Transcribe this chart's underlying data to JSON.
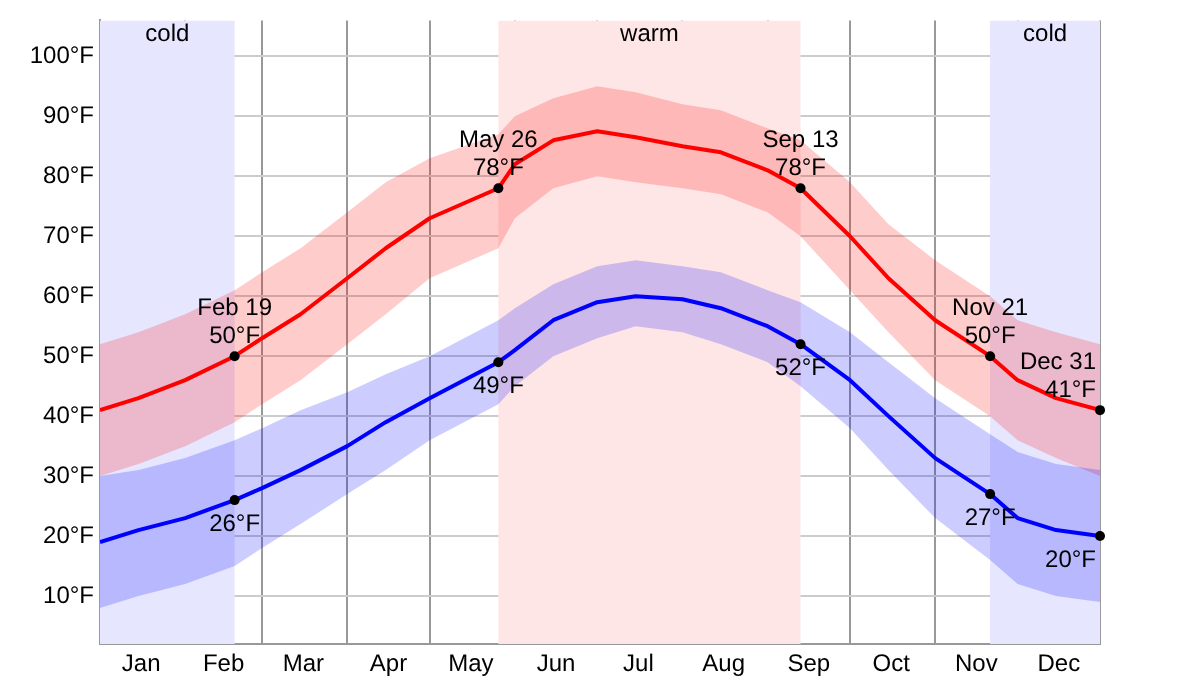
{
  "chart_data": {
    "type": "line",
    "x": [
      "--01-01",
      "--01-15",
      "--02-01",
      "--02-19",
      "--03-01",
      "--03-15",
      "--04-01",
      "--04-15",
      "--05-01",
      "--05-26",
      "--06-01",
      "--06-15",
      "--07-01",
      "--07-15",
      "--08-01",
      "--08-15",
      "--09-01",
      "--09-13",
      "--10-01",
      "--10-15",
      "--11-01",
      "--11-21",
      "--12-01",
      "--12-15",
      "--12-31"
    ],
    "series": [
      {
        "color": "#ff0000",
        "values": [
          41,
          43,
          46,
          50,
          53,
          57,
          63,
          68,
          73,
          78,
          82,
          86,
          87.5,
          86.5,
          85,
          84,
          81,
          78,
          70,
          63,
          56,
          50,
          46,
          43,
          41
        ],
        "lower": [
          30,
          32,
          35,
          39,
          42,
          46,
          52,
          57,
          63,
          68,
          73,
          78,
          80,
          79,
          78,
          77,
          74,
          70,
          61,
          54,
          46,
          40,
          36,
          33,
          30
        ],
        "upper": [
          52,
          54,
          57,
          61,
          64,
          68,
          74,
          79,
          83,
          87,
          90,
          93,
          95,
          94,
          92,
          91,
          88,
          86,
          79,
          72,
          66,
          60,
          56,
          54,
          52
        ]
      },
      {
        "color": "#0000ff",
        "values": [
          19,
          21,
          23,
          26,
          28,
          31,
          35,
          39,
          43,
          49,
          51,
          56,
          59,
          60,
          59.5,
          58,
          55,
          52,
          46,
          40,
          33,
          27,
          23,
          21,
          20
        ],
        "lower": [
          8,
          10,
          12,
          15,
          18,
          22,
          27,
          31,
          36,
          42,
          45,
          50,
          53,
          55,
          54,
          52,
          49,
          45,
          38,
          31,
          23,
          16,
          12,
          10,
          9
        ],
        "upper": [
          30,
          31,
          33,
          36,
          38,
          41,
          44,
          47,
          50,
          56,
          58,
          62,
          65,
          66,
          65,
          64,
          61,
          59,
          54,
          49,
          43,
          37,
          34,
          32,
          31
        ]
      }
    ],
    "xlim": [
      "--01-01",
      "--12-31"
    ],
    "xticks": [
      {
        "value": "--01-01",
        "label": null
      },
      {
        "value": "--01-16",
        "label": "Jan"
      },
      {
        "value": "--02-01",
        "label": null
      },
      {
        "value": "--02-15",
        "label": "Feb"
      },
      {
        "value": "--03-01",
        "label": null
      },
      {
        "value": "--03-16",
        "label": "Mar"
      },
      {
        "value": "--04-01",
        "label": null
      },
      {
        "value": "--04-16",
        "label": "Apr"
      },
      {
        "value": "--05-01",
        "label": null
      },
      {
        "value": "--05-16",
        "label": "May"
      },
      {
        "value": "--06-01",
        "label": null
      },
      {
        "value": "--06-16",
        "label": "Jun"
      },
      {
        "value": "--07-01",
        "label": null
      },
      {
        "value": "--07-16",
        "label": "Jul"
      },
      {
        "value": "--08-01",
        "label": null
      },
      {
        "value": "--08-16",
        "label": "Aug"
      },
      {
        "value": "--09-01",
        "label": null
      },
      {
        "value": "--09-16",
        "label": "Sep"
      },
      {
        "value": "--10-01",
        "label": null
      },
      {
        "value": "--10-16",
        "label": "Oct"
      },
      {
        "value": "--11-01",
        "label": null
      },
      {
        "value": "--11-16",
        "label": "Nov"
      },
      {
        "value": "--12-01",
        "label": null
      },
      {
        "value": "--12-16",
        "label": "Dec"
      },
      {
        "value": "--12-31",
        "label": null
      }
    ],
    "ylim": [
      2,
      106
    ],
    "yticks": [
      {
        "value": 10,
        "label": "10°F"
      },
      {
        "value": 20,
        "label": "20°F"
      },
      {
        "value": 30,
        "label": "30°F"
      },
      {
        "value": 40,
        "label": "40°F"
      },
      {
        "value": 50,
        "label": "50°F"
      },
      {
        "value": 60,
        "label": "60°F"
      },
      {
        "value": 70,
        "label": "70°F"
      },
      {
        "value": 80,
        "label": "80°F"
      },
      {
        "value": 90,
        "label": "90°F"
      },
      {
        "value": 100,
        "label": "100°F"
      }
    ],
    "grid": true,
    "legend": false,
    "marker": "none",
    "line_style": "solid",
    "bands": [
      {
        "axis": "x",
        "from": "--01-01",
        "to": "--02-19",
        "label": "cold",
        "color": "#e6e6ff"
      },
      {
        "axis": "x",
        "from": "--05-26",
        "to": "--09-13",
        "label": "warm",
        "color": "#ffe6e6"
      },
      {
        "axis": "x",
        "from": "--11-21",
        "to": "--12-31",
        "label": "cold",
        "color": "#e6e6ff"
      }
    ],
    "annotations": [
      {
        "text": "Feb 19",
        "x": "--02-19",
        "y": 50
      },
      {
        "text": "50°F",
        "x": "--02-19",
        "y": 50
      },
      {
        "text": "May 26",
        "x": "--05-26",
        "y": 78
      },
      {
        "text": "78°F",
        "x": "--05-26",
        "y": 78
      },
      {
        "text": "Sep 13",
        "x": "--09-13",
        "y": 78
      },
      {
        "text": "78°F",
        "x": "--09-13",
        "y": 78
      },
      {
        "text": "Nov 21",
        "x": "--11-21",
        "y": 50
      },
      {
        "text": "50°F",
        "x": "--11-21",
        "y": 50
      },
      {
        "text": "Dec 31",
        "x": "--12-31",
        "y": 41
      },
      {
        "text": "41°F",
        "x": "--12-31",
        "y": 41
      },
      {
        "text": "26°F",
        "x": "--02-19",
        "y": 26
      },
      {
        "text": "49°F",
        "x": "--05-26",
        "y": 49
      },
      {
        "text": "52°F",
        "x": "--09-13",
        "y": 52
      },
      {
        "text": "27°F",
        "x": "--11-21",
        "y": 27
      },
      {
        "text": "20°F",
        "x": "--12-31",
        "y": 20
      }
    ]
  }
}
